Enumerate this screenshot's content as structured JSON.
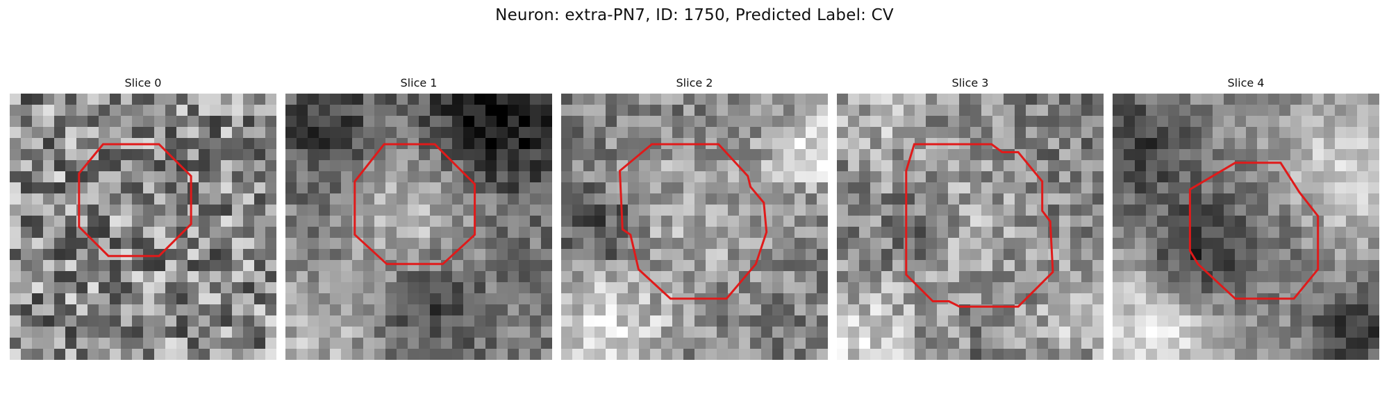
{
  "figure": {
    "title": "Neuron: extra-PN7, ID: 1750, Predicted Label: CV"
  },
  "contour_color": "#e01a1a",
  "panels": [
    {
      "title": "Slice 0",
      "image": "grayscale-noise-patch",
      "contour": [
        [
          0.35,
          0.19
        ],
        [
          0.56,
          0.19
        ],
        [
          0.68,
          0.31
        ],
        [
          0.68,
          0.49
        ],
        [
          0.56,
          0.61
        ],
        [
          0.37,
          0.61
        ],
        [
          0.26,
          0.5
        ],
        [
          0.26,
          0.3
        ]
      ]
    },
    {
      "title": "Slice 1",
      "image": "grayscale-cell-patch",
      "contour": [
        [
          0.37,
          0.19
        ],
        [
          0.56,
          0.19
        ],
        [
          0.71,
          0.34
        ],
        [
          0.71,
          0.53
        ],
        [
          0.59,
          0.64
        ],
        [
          0.38,
          0.64
        ],
        [
          0.26,
          0.53
        ],
        [
          0.26,
          0.33
        ]
      ]
    },
    {
      "title": "Slice 2",
      "image": "grayscale-cell-patch",
      "contour": [
        [
          0.34,
          0.19
        ],
        [
          0.59,
          0.19
        ],
        [
          0.7,
          0.31
        ],
        [
          0.71,
          0.35
        ],
        [
          0.76,
          0.41
        ],
        [
          0.77,
          0.52
        ],
        [
          0.73,
          0.64
        ],
        [
          0.62,
          0.77
        ],
        [
          0.41,
          0.77
        ],
        [
          0.29,
          0.66
        ],
        [
          0.26,
          0.53
        ],
        [
          0.23,
          0.51
        ],
        [
          0.22,
          0.29
        ]
      ]
    },
    {
      "title": "Slice 3",
      "image": "grayscale-cell-patch",
      "contour": [
        [
          0.29,
          0.19
        ],
        [
          0.58,
          0.19
        ],
        [
          0.62,
          0.22
        ],
        [
          0.68,
          0.22
        ],
        [
          0.77,
          0.33
        ],
        [
          0.77,
          0.44
        ],
        [
          0.8,
          0.48
        ],
        [
          0.81,
          0.67
        ],
        [
          0.68,
          0.8
        ],
        [
          0.46,
          0.8
        ],
        [
          0.42,
          0.78
        ],
        [
          0.36,
          0.78
        ],
        [
          0.26,
          0.68
        ],
        [
          0.26,
          0.29
        ]
      ]
    },
    {
      "title": "Slice 4",
      "image": "grayscale-cell-patch",
      "contour": [
        [
          0.46,
          0.26
        ],
        [
          0.63,
          0.26
        ],
        [
          0.7,
          0.37
        ],
        [
          0.77,
          0.46
        ],
        [
          0.77,
          0.66
        ],
        [
          0.68,
          0.77
        ],
        [
          0.46,
          0.77
        ],
        [
          0.32,
          0.64
        ],
        [
          0.29,
          0.59
        ],
        [
          0.29,
          0.36
        ]
      ]
    }
  ]
}
